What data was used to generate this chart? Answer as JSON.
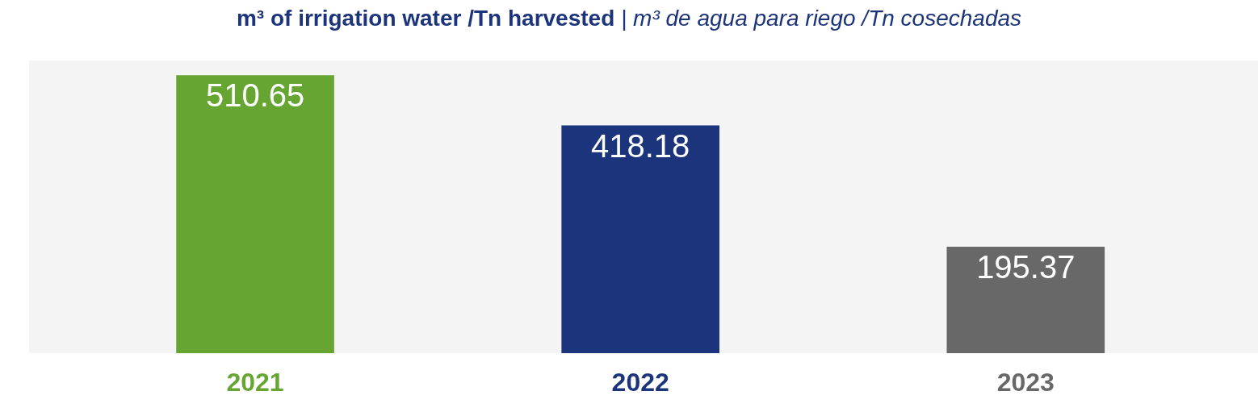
{
  "chart_data": {
    "type": "bar",
    "title": "m³ of irrigation water /Tn harvested",
    "subtitle": "| m³ de agua para riego /Tn cosechadas",
    "categories": [
      "2021",
      "2022",
      "2023"
    ],
    "values": [
      510.65,
      418.18,
      195.37
    ],
    "colors": [
      "#66a532",
      "#1b347b",
      "#686868"
    ],
    "data_labels": true
  }
}
